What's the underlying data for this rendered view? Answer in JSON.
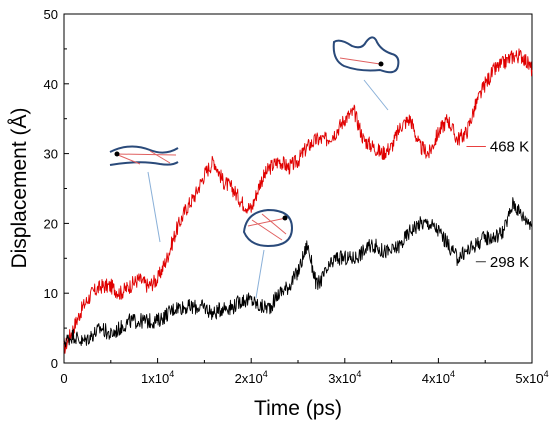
{
  "chart_data": {
    "type": "line",
    "xlabel": "Time (ps)",
    "ylabel": "Displacement (Å)",
    "xlim": [
      0,
      50000
    ],
    "ylim": [
      0,
      50
    ],
    "x_ticks": [
      {
        "value": 0,
        "label": "0"
      },
      {
        "value": 10000,
        "label": "1x10"
      },
      {
        "value": 20000,
        "label": "2x10"
      },
      {
        "value": 30000,
        "label": "3x10"
      },
      {
        "value": 40000,
        "label": "4x10"
      },
      {
        "value": 50000,
        "label": "5x10"
      }
    ],
    "x_tick_exponent": "4",
    "y_ticks": [
      0,
      10,
      20,
      30,
      40,
      50
    ],
    "grid": false,
    "series": [
      {
        "name": "468 K",
        "color": "#e00000",
        "x": [
          0,
          1000,
          2000,
          3000,
          4000,
          5000,
          6000,
          7000,
          8000,
          9000,
          10000,
          11000,
          12000,
          13000,
          14000,
          15000,
          16000,
          17000,
          18000,
          19000,
          20000,
          21000,
          22000,
          23000,
          24000,
          25000,
          26000,
          27000,
          28000,
          29000,
          30000,
          31000,
          32000,
          33000,
          34000,
          35000,
          36000,
          37000,
          38000,
          39000,
          40000,
          41000,
          42000,
          43000,
          44000,
          45000,
          46000,
          47000,
          48000,
          49000,
          50000
        ],
        "y": [
          2,
          5,
          8,
          10,
          11,
          11,
          10,
          11,
          12,
          11,
          12,
          15,
          19,
          22,
          24,
          27,
          29,
          26,
          25,
          23,
          22,
          26,
          28,
          29,
          28,
          29,
          31,
          32,
          32,
          33,
          35,
          36,
          32,
          31,
          30,
          31,
          34,
          35,
          31,
          30,
          33,
          35,
          32,
          33,
          37,
          40,
          42,
          43,
          44,
          44,
          42
        ]
      },
      {
        "name": "298 K",
        "color": "#000000",
        "x": [
          0,
          1000,
          2000,
          3000,
          4000,
          5000,
          6000,
          7000,
          8000,
          9000,
          10000,
          11000,
          12000,
          13000,
          14000,
          15000,
          16000,
          17000,
          18000,
          19000,
          20000,
          21000,
          22000,
          23000,
          24000,
          25000,
          26000,
          27000,
          28000,
          29000,
          30000,
          31000,
          32000,
          33000,
          34000,
          35000,
          36000,
          37000,
          38000,
          39000,
          40000,
          41000,
          42000,
          43000,
          44000,
          45000,
          46000,
          47000,
          48000,
          49000,
          50000
        ],
        "y": [
          3,
          4,
          3,
          4,
          5,
          4,
          5,
          6,
          6,
          6,
          6,
          7,
          8,
          8,
          8,
          8,
          7,
          8,
          8,
          9,
          9,
          8,
          8,
          10,
          11,
          13,
          17,
          11,
          13,
          15,
          15,
          15,
          16,
          17,
          16,
          16,
          17,
          19,
          20,
          20,
          19,
          17,
          15,
          16,
          17,
          18,
          18,
          19,
          23,
          21,
          20
        ]
      }
    ],
    "annotations": [
      {
        "text": "468 K",
        "x": 43000,
        "y": 31,
        "label_x": 45500
      },
      {
        "text": "298 K",
        "x": 44000,
        "y": 14.5,
        "label_x": 45500
      }
    ]
  }
}
